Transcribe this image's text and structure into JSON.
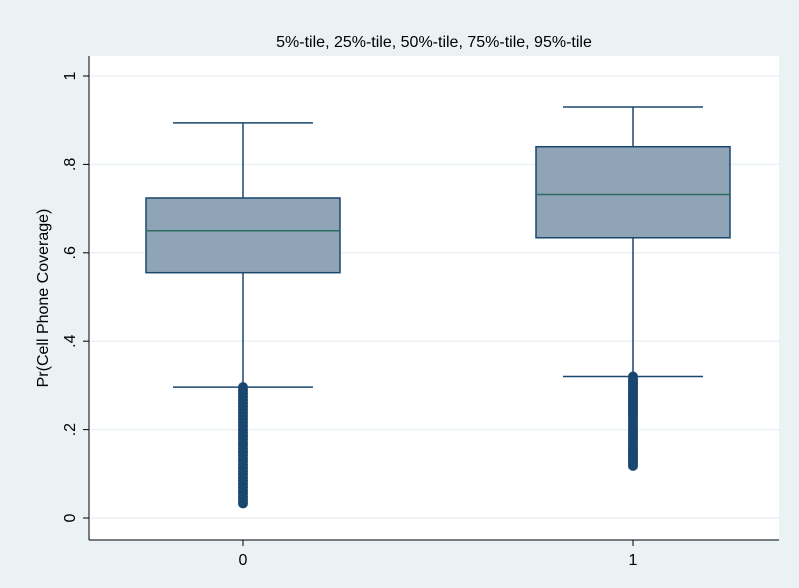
{
  "chart_data": {
    "type": "box",
    "title": "5%-tile, 25%-tile, 50%-tile, 75%-tile, 95%-tile",
    "xlabel": "",
    "ylabel": "Pr(Cell Phone Coverage)",
    "ylim": [
      0,
      1
    ],
    "yticks": [
      {
        "value": 0,
        "label": "0"
      },
      {
        "value": 0.2,
        "label": ".2"
      },
      {
        "value": 0.4,
        "label": ".4"
      },
      {
        "value": 0.6,
        "label": ".6"
      },
      {
        "value": 0.8,
        "label": ".8"
      },
      {
        "value": 1,
        "label": "1"
      }
    ],
    "grid": true,
    "legend": "none",
    "categories": [
      "0",
      "1"
    ],
    "boxes": [
      {
        "category": "0",
        "p5": 0.296,
        "p25": 0.555,
        "p50": 0.65,
        "p75": 0.724,
        "p95": 0.894,
        "outliers_range": [
          0.033,
          0.296
        ]
      },
      {
        "category": "1",
        "p5": 0.32,
        "p25": 0.634,
        "p50": 0.732,
        "p75": 0.84,
        "p95": 0.93,
        "outliers_range": [
          0.118,
          0.32
        ]
      }
    ],
    "colors": {
      "background": "#eaf2f3",
      "plot_background": "#ffffff",
      "box_fill": "#90a4b8",
      "box_edge": "#1a476f",
      "median": "#2d6e5e",
      "whisker": "#1a476f",
      "outlier": "#1a476f",
      "grid": "#eaf2f3"
    }
  }
}
